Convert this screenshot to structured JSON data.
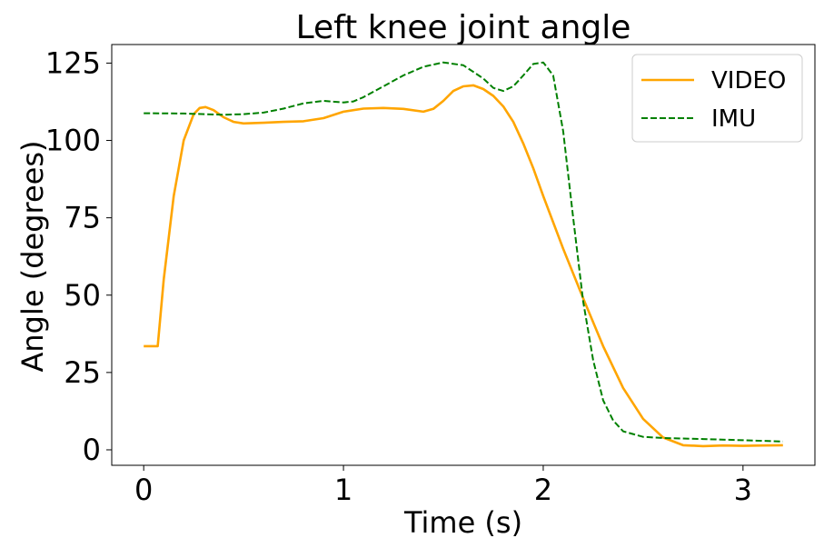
{
  "chart_data": {
    "type": "line",
    "title": "Left knee joint angle",
    "xlabel": "Time (s)",
    "ylabel": "Angle (degrees)",
    "xlim": [
      -0.16,
      3.36
    ],
    "ylim": [
      -5,
      131
    ],
    "xticks": [
      0,
      1,
      2,
      3
    ],
    "yticks": [
      0,
      25,
      50,
      75,
      100,
      125
    ],
    "grid": false,
    "legend_position": "top-right",
    "series": [
      {
        "name": "VIDEO",
        "color": "#ffa500",
        "style": "solid",
        "x": [
          0,
          0.07,
          0.1,
          0.15,
          0.2,
          0.25,
          0.28,
          0.31,
          0.35,
          0.4,
          0.45,
          0.5,
          0.6,
          0.7,
          0.8,
          0.9,
          1.0,
          1.1,
          1.2,
          1.3,
          1.4,
          1.45,
          1.5,
          1.55,
          1.6,
          1.65,
          1.7,
          1.75,
          1.8,
          1.85,
          1.9,
          1.95,
          2.0,
          2.1,
          2.2,
          2.3,
          2.4,
          2.5,
          2.6,
          2.7,
          2.8,
          2.9,
          3.0,
          3.1,
          3.2
        ],
        "y": [
          33.5,
          33.5,
          55,
          82,
          100,
          108.5,
          110.5,
          110.8,
          109.8,
          107.5,
          106,
          105.5,
          105.7,
          106,
          106.2,
          107.2,
          109.3,
          110.3,
          110.5,
          110.2,
          109.3,
          110.2,
          112.8,
          116,
          117.5,
          117.8,
          116.6,
          114.4,
          111,
          106,
          99,
          91,
          82,
          65,
          49,
          33.5,
          20,
          10,
          4,
          1.5,
          1.2,
          1.4,
          1.3,
          1.4,
          1.5
        ]
      },
      {
        "name": "IMU",
        "color": "#008000",
        "style": "dashed",
        "x": [
          0,
          0.2,
          0.4,
          0.5,
          0.6,
          0.7,
          0.8,
          0.9,
          1.0,
          1.05,
          1.1,
          1.2,
          1.3,
          1.4,
          1.5,
          1.6,
          1.7,
          1.75,
          1.8,
          1.85,
          1.9,
          1.95,
          2.0,
          2.05,
          2.1,
          2.15,
          2.2,
          2.25,
          2.3,
          2.35,
          2.4,
          2.5,
          2.6,
          2.8,
          3.0,
          3.2
        ],
        "y": [
          108.8,
          108.7,
          108.3,
          108.5,
          109,
          110.3,
          112,
          112.8,
          112.3,
          112.6,
          114,
          117.5,
          121,
          123.8,
          125.2,
          124.3,
          120,
          117,
          116,
          117.5,
          121,
          124.7,
          125.2,
          121,
          103,
          75,
          48,
          29,
          16,
          9.5,
          6,
          4.2,
          3.8,
          3.5,
          3.1,
          2.7
        ]
      }
    ]
  }
}
